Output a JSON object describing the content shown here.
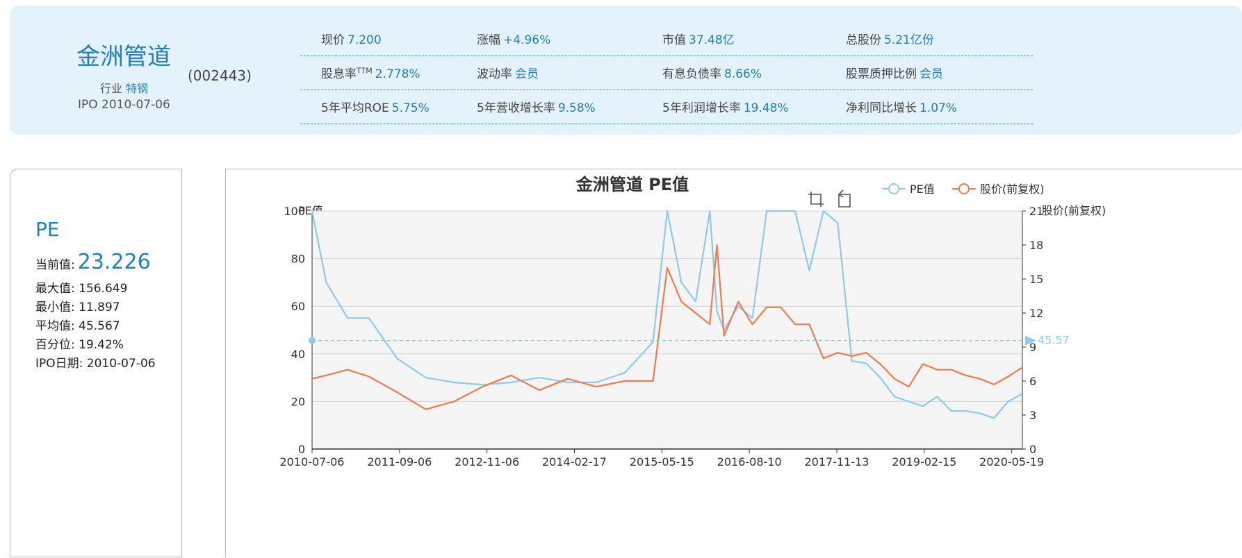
{
  "header": {
    "name": "金洲管道",
    "code": "(002443)",
    "industry_label": "行业",
    "industry_value": "特钢",
    "ipo": "IPO 2010-07-06",
    "metrics": [
      [
        {
          "label": "现价",
          "value": "7.200"
        },
        {
          "label": "涨幅",
          "value": "+4.96%"
        },
        {
          "label": "市值",
          "value": "37.48亿"
        },
        {
          "label": "总股份",
          "value": "5.21亿份"
        }
      ],
      [
        {
          "label": "股息率",
          "sup": "TTM",
          "value": "2.778%"
        },
        {
          "label": "波动率",
          "value": "会员"
        },
        {
          "label": "有息负债率",
          "value": "8.66%"
        },
        {
          "label": "股票质押比例",
          "value": "会员"
        }
      ],
      [
        {
          "label": "5年平均ROE",
          "value": "5.75%"
        },
        {
          "label": "5年营收增长率",
          "value": "9.58%"
        },
        {
          "label": "5年利润增长率",
          "value": "19.48%"
        },
        {
          "label": "净利同比增长",
          "value": "1.07%"
        }
      ]
    ]
  },
  "stats": {
    "title": "PE",
    "current_label": "当前值:",
    "current_value": "23.226",
    "max": "最大值:  156.649",
    "min": "最小值:  11.897",
    "avg": "平均值:  45.567",
    "percentile": "百分位:  19.42%",
    "ipo_date": "IPO日期:   2010-07-06"
  },
  "colors": {
    "pe_line": "#8ec9ef",
    "price_line": "#f27a4a",
    "accent": "#1f7fc0",
    "header_bg": "#e4f3fb"
  },
  "toolbar": {
    "icons": [
      "zoom-icon",
      "zoom-reset-icon"
    ]
  },
  "chart_data": {
    "type": "line",
    "title": "金洲管道 PE值",
    "legend": [
      "PE值",
      "股价(前复权)"
    ],
    "legend_position": "top-right",
    "y_left_label": "PE值",
    "y_right_label": "股价(前复权)",
    "y_left_range": [
      0,
      100
    ],
    "y_right_range": [
      0,
      21
    ],
    "y_left_ticks": [
      "0",
      "20",
      "40",
      "60",
      "80",
      "100"
    ],
    "y_right_ticks": [
      "0",
      "3",
      "6",
      "9",
      "12",
      "15",
      "18",
      "21"
    ],
    "x_ticks": [
      "2010-07-06",
      "2011-09-06",
      "2012-11-06",
      "2014-02-17",
      "2015-05-15",
      "2016-08-10",
      "2017-11-13",
      "2019-02-15",
      "2020-05-19"
    ],
    "grid": true,
    "mark_line": {
      "value": 45.57,
      "label": "45.57"
    },
    "series": [
      {
        "name": "PE值",
        "axis": "left",
        "x": [
          0,
          0.02,
          0.05,
          0.08,
          0.12,
          0.16,
          0.2,
          0.24,
          0.28,
          0.32,
          0.36,
          0.4,
          0.44,
          0.48,
          0.5,
          0.52,
          0.54,
          0.56,
          0.57,
          0.58,
          0.6,
          0.62,
          0.64,
          0.66,
          0.68,
          0.7,
          0.72,
          0.74,
          0.76,
          0.78,
          0.8,
          0.82,
          0.84,
          0.86,
          0.88,
          0.9,
          0.92,
          0.94,
          0.96,
          0.98,
          1.0
        ],
        "values": [
          100,
          70,
          55,
          55,
          38,
          30,
          28,
          27,
          28,
          30,
          28,
          28,
          32,
          45,
          100,
          70,
          62,
          100,
          58,
          50,
          60,
          55,
          100,
          100,
          100,
          75,
          100,
          95,
          37,
          36,
          30,
          22,
          20,
          18,
          22,
          16,
          16,
          15,
          13,
          20,
          23.2
        ]
      },
      {
        "name": "股价(前复权)",
        "axis": "right",
        "x": [
          0,
          0.02,
          0.05,
          0.08,
          0.12,
          0.16,
          0.2,
          0.24,
          0.28,
          0.32,
          0.36,
          0.4,
          0.44,
          0.48,
          0.5,
          0.52,
          0.54,
          0.56,
          0.57,
          0.58,
          0.6,
          0.62,
          0.64,
          0.66,
          0.68,
          0.7,
          0.72,
          0.74,
          0.76,
          0.78,
          0.8,
          0.82,
          0.84,
          0.86,
          0.88,
          0.9,
          0.92,
          0.94,
          0.96,
          0.98,
          1.0
        ],
        "values": [
          6.2,
          6.5,
          7,
          6.4,
          5,
          3.5,
          4.2,
          5.5,
          6.5,
          5.2,
          6.2,
          5.5,
          6,
          6,
          16,
          13,
          12,
          11,
          18,
          10,
          13,
          11,
          12.5,
          12.5,
          11,
          11,
          8,
          8.5,
          8.2,
          8.5,
          7.5,
          6.2,
          5.5,
          7.5,
          7,
          7,
          6.5,
          6.2,
          5.7,
          6.4,
          7.2
        ]
      }
    ]
  }
}
